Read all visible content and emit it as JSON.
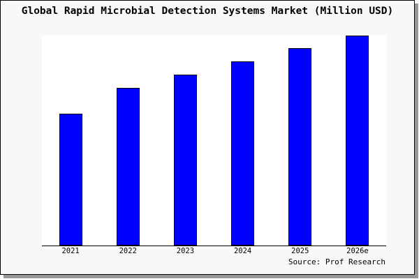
{
  "chart_data": {
    "type": "bar",
    "title": "Global Rapid Microbial Detection Systems Market (Million USD)",
    "categories": [
      "2021",
      "2022",
      "2023",
      "2024",
      "2025",
      "2026e"
    ],
    "values": [
      62.8,
      75.1,
      81.4,
      87.7,
      94.0,
      100
    ],
    "value_note": "no y-axis or data labels shown; values are bar heights relative to 2026e = 100",
    "xlabel": "",
    "ylabel": "",
    "ylim": [
      0,
      100
    ],
    "grid": false,
    "legend": "none",
    "bar_color": "#0000ff",
    "bar_border_color": "#000000",
    "figure_background": "#f8f8f8",
    "plot_background": "#ffffff",
    "source": "Source: Prof Research"
  }
}
